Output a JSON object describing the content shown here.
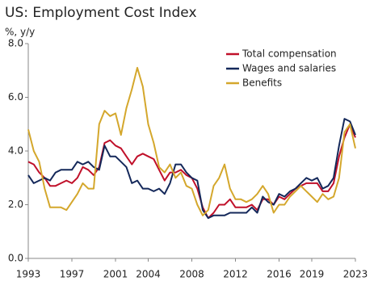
{
  "chart_data": {
    "type": "line",
    "title": "US: Employment Cost Index",
    "subtitle": "%, y/y",
    "x": [
      1993,
      1993.5,
      1994,
      1994.5,
      1995,
      1995.5,
      1996,
      1996.5,
      1997,
      1997.5,
      1998,
      1998.5,
      1999,
      1999.5,
      2000,
      2000.5,
      2001,
      2001.5,
      2002,
      2002.5,
      2003,
      2003.5,
      2004,
      2004.5,
      2005,
      2005.5,
      2006,
      2006.5,
      2007,
      2007.5,
      2008,
      2008.5,
      2009,
      2009.5,
      2010,
      2010.5,
      2011,
      2011.5,
      2012,
      2012.5,
      2013,
      2013.5,
      2014,
      2014.5,
      2015,
      2015.5,
      2016,
      2016.5,
      2017,
      2017.5,
      2018,
      2018.5,
      2019,
      2019.5,
      2020,
      2020.5,
      2021,
      2021.5,
      2022,
      2022.5,
      2023
    ],
    "series": [
      {
        "name": "Total compensation",
        "color": "#c0102a",
        "values": [
          3.6,
          3.5,
          3.2,
          3.0,
          2.7,
          2.7,
          2.8,
          2.9,
          2.8,
          3.0,
          3.4,
          3.3,
          3.1,
          3.4,
          4.3,
          4.4,
          4.2,
          4.1,
          3.8,
          3.5,
          3.8,
          3.9,
          3.8,
          3.7,
          3.3,
          2.9,
          3.2,
          3.2,
          3.3,
          3.1,
          3.0,
          2.6,
          1.9,
          1.5,
          1.7,
          2.0,
          2.0,
          2.2,
          1.9,
          1.9,
          1.9,
          2.0,
          1.8,
          2.2,
          2.2,
          2.0,
          2.3,
          2.2,
          2.4,
          2.6,
          2.7,
          2.8,
          2.8,
          2.8,
          2.5,
          2.5,
          2.8,
          3.8,
          4.5,
          5.0,
          4.5
        ]
      },
      {
        "name": "Wages and salaries",
        "color": "#14285a",
        "values": [
          3.1,
          2.8,
          2.9,
          3.0,
          2.9,
          3.2,
          3.3,
          3.3,
          3.3,
          3.6,
          3.5,
          3.6,
          3.4,
          3.3,
          4.2,
          3.8,
          3.8,
          3.6,
          3.4,
          2.8,
          2.9,
          2.6,
          2.6,
          2.5,
          2.6,
          2.4,
          2.8,
          3.5,
          3.5,
          3.2,
          3.0,
          2.9,
          1.8,
          1.5,
          1.6,
          1.6,
          1.6,
          1.7,
          1.7,
          1.7,
          1.7,
          1.9,
          1.7,
          2.3,
          2.1,
          2.0,
          2.4,
          2.3,
          2.5,
          2.6,
          2.8,
          3.0,
          2.9,
          3.0,
          2.6,
          2.7,
          3.0,
          4.2,
          5.2,
          5.1,
          4.6
        ]
      },
      {
        "name": "Benefits",
        "color": "#d4a72c",
        "values": [
          4.8,
          4.0,
          3.6,
          2.6,
          1.9,
          1.9,
          1.9,
          1.8,
          2.1,
          2.4,
          2.8,
          2.6,
          2.6,
          5.0,
          5.5,
          5.3,
          5.4,
          4.6,
          5.6,
          6.3,
          7.1,
          6.4,
          5.0,
          4.3,
          3.4,
          3.2,
          3.5,
          3.0,
          3.2,
          2.7,
          2.6,
          2.0,
          1.6,
          1.8,
          2.7,
          3.0,
          3.5,
          2.6,
          2.2,
          2.2,
          2.1,
          2.2,
          2.4,
          2.7,
          2.4,
          1.7,
          2.0,
          2.0,
          2.3,
          2.5,
          2.7,
          2.5,
          2.3,
          2.1,
          2.4,
          2.2,
          2.3,
          3.0,
          4.7,
          5.0,
          4.1
        ]
      }
    ],
    "xlim": [
      1993,
      2023
    ],
    "xticks": [
      1993,
      1997,
      2001,
      2004,
      2008,
      2012,
      2016,
      2019,
      2023
    ],
    "ylim": [
      0,
      8
    ],
    "yticks": [
      {
        "value": 0,
        "label": "0.0"
      },
      {
        "value": 2,
        "label": "2.0"
      },
      {
        "value": 4,
        "label": "4.0"
      },
      {
        "value": 6,
        "label": "6.0"
      },
      {
        "value": 8,
        "label": "8.0"
      }
    ],
    "grid": false,
    "legend": "top-right"
  }
}
